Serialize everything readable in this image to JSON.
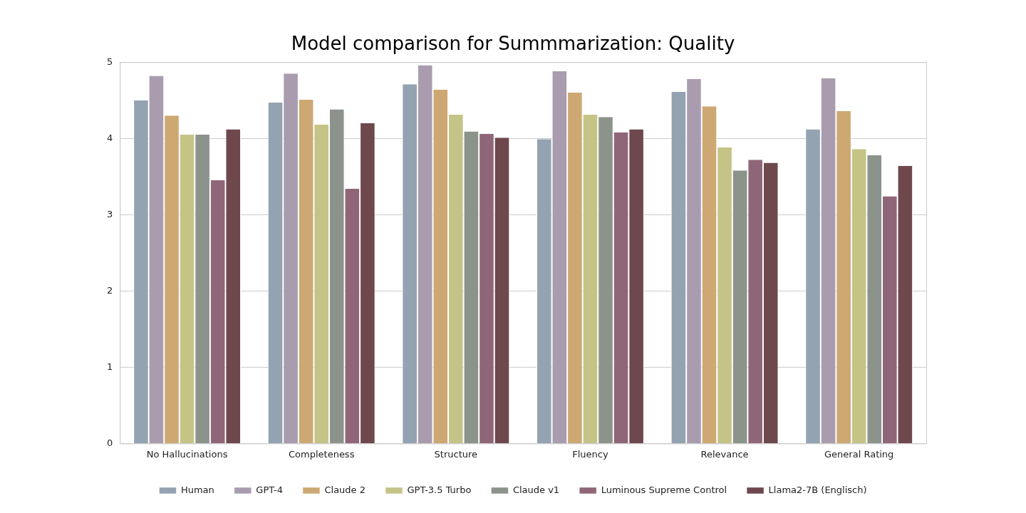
{
  "chart_data": {
    "type": "bar",
    "title": "Model comparison for Summmarization: Quality",
    "categories": [
      "No Hallucinations",
      "Completeness",
      "Structure",
      "Fluency",
      "Relevance",
      "General Rating"
    ],
    "series": [
      {
        "name": "Human",
        "color": "#94a3b2",
        "values": [
          4.5,
          4.47,
          4.71,
          3.99,
          4.61,
          4.12
        ]
      },
      {
        "name": "GPT-4",
        "color": "#a99caf",
        "values": [
          4.82,
          4.85,
          4.96,
          4.88,
          4.78,
          4.79
        ]
      },
      {
        "name": "Claude 2",
        "color": "#cea873",
        "values": [
          4.3,
          4.51,
          4.64,
          4.6,
          4.42,
          4.36
        ]
      },
      {
        "name": "GPT-3.5 Turbo",
        "color": "#c5c487",
        "values": [
          4.05,
          4.18,
          4.31,
          4.31,
          3.88,
          3.86
        ]
      },
      {
        "name": "Claude v1",
        "color": "#8b938b",
        "values": [
          4.05,
          4.38,
          4.09,
          4.28,
          3.58,
          3.78
        ]
      },
      {
        "name": "Luminous Supreme Control",
        "color": "#8f6678",
        "values": [
          3.45,
          3.34,
          4.06,
          4.08,
          3.72,
          3.24
        ]
      },
      {
        "name": "Llama2-7B (Englisch)",
        "color": "#6e484d",
        "values": [
          4.12,
          4.2,
          4.01,
          4.12,
          3.68,
          3.64
        ]
      }
    ],
    "ylim": [
      0,
      5
    ],
    "yticks": [
      0,
      1,
      2,
      3,
      4,
      5
    ],
    "grid": true,
    "legend": "bottom"
  }
}
